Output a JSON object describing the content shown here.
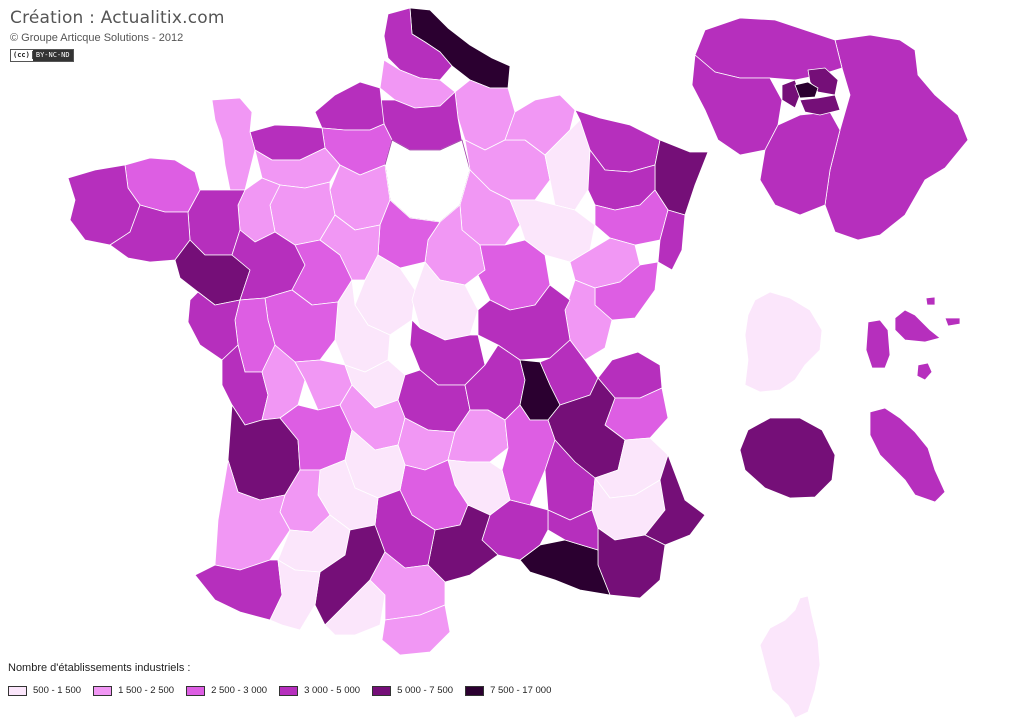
{
  "credits": {
    "title": "Création : Actualitix.com",
    "copyright": "© Groupe Articque Solutions - 2012",
    "license_mark": "(cc)",
    "license_text": "BY-NC-ND"
  },
  "legend": {
    "title": "Nombre d'établissements industriels :",
    "classes": [
      {
        "label": "500 - 1 500",
        "color": "#fbe6fb"
      },
      {
        "label": "1 500 - 2 500",
        "color": "#f197f4"
      },
      {
        "label": "2 500 - 3 000",
        "color": "#dd5ee3"
      },
      {
        "label": "3 000 - 5 000",
        "color": "#b62fbd"
      },
      {
        "label": "5 000 - 7 500",
        "color": "#750f78"
      },
      {
        "label": "7 500 - 17 000",
        "color": "#2b0030"
      }
    ]
  },
  "map": {
    "subject": "Nombre d'établissements industriels",
    "inset_regions": [
      "Île-de-France",
      "Guyane",
      "Guadeloupe",
      "Martinique",
      "La Réunion",
      "Corse"
    ]
  }
}
